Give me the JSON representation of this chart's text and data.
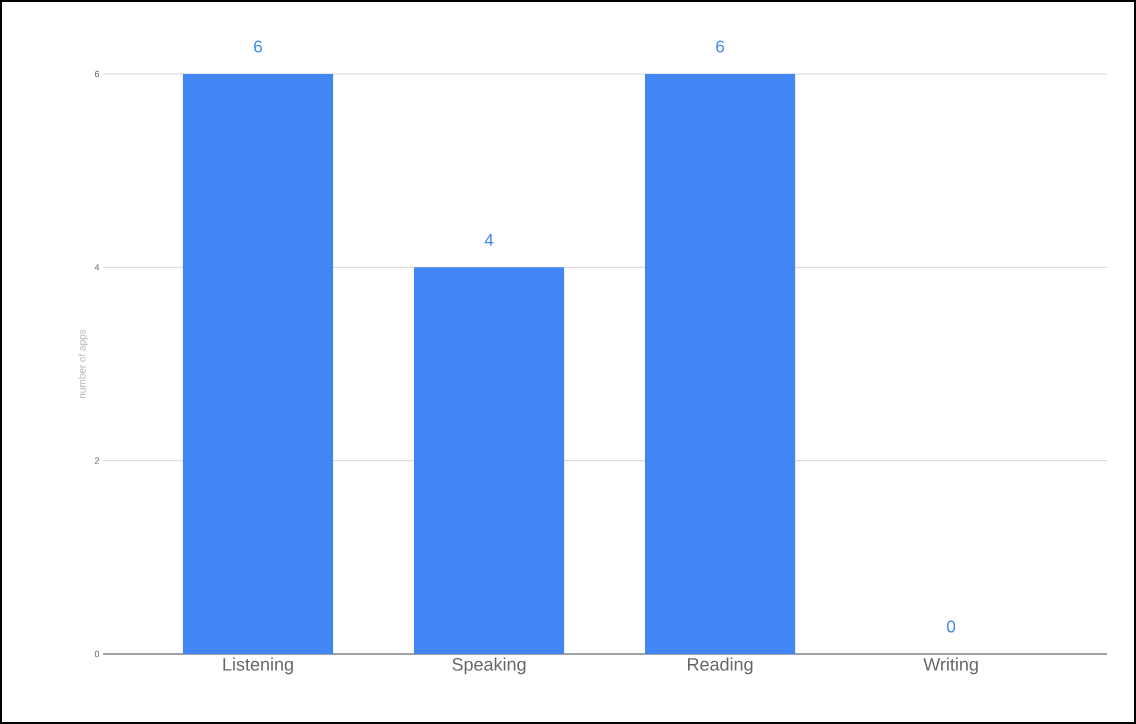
{
  "chart_data": {
    "type": "bar",
    "ylabel": "number of apps",
    "categories": [
      "Listening",
      "Speaking",
      "Reading",
      "Writing"
    ],
    "values": [
      6,
      4,
      6,
      0
    ],
    "color": "#4285f4",
    "ylim": [
      0,
      6
    ],
    "yticks": [
      0,
      2,
      4,
      6
    ],
    "grid": "y",
    "data_labels": true
  }
}
